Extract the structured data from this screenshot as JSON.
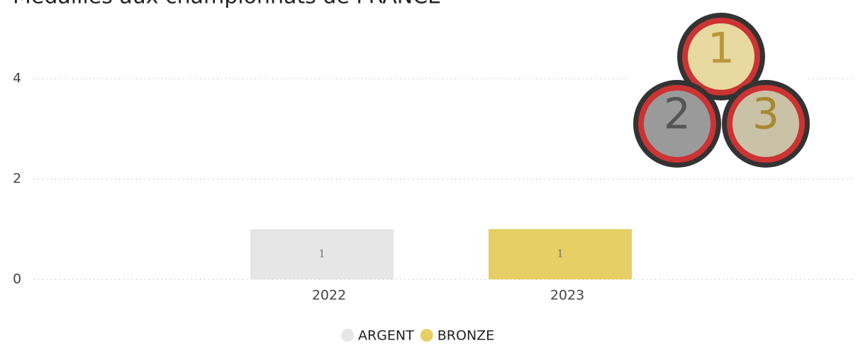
{
  "chart_data": {
    "type": "stacked-bar",
    "title": "Médailles aux championnats de FRANCE",
    "categories": [
      "2022",
      "2023"
    ],
    "series": [
      {
        "name": "ARGENT",
        "color": "#e6e6e6",
        "values": [
          1,
          null
        ]
      },
      {
        "name": "BRONZE",
        "color": "#e6cf64",
        "values": [
          null,
          1
        ]
      }
    ],
    "ylim": [
      0,
      5
    ],
    "yticks": [
      0,
      2,
      4
    ],
    "grid": true,
    "legend": "bottom"
  }
}
